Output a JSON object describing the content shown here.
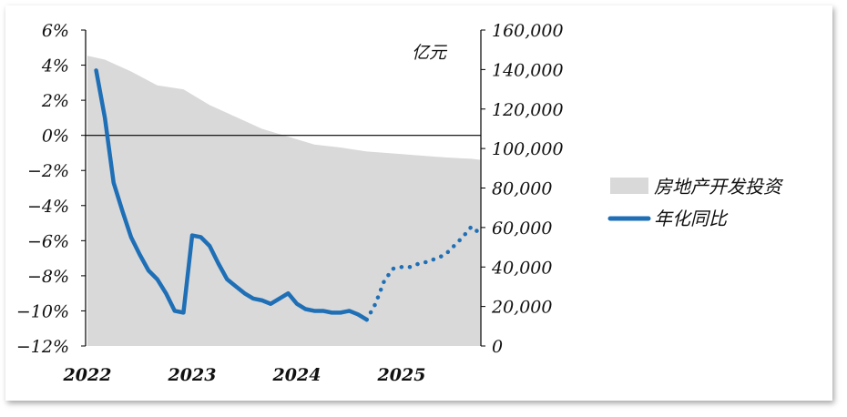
{
  "chart_data": {
    "type": "line",
    "left_axis": {
      "ticks": [
        "6%",
        "4%",
        "2%",
        "0%",
        "−2%",
        "−4%",
        "−6%",
        "−8%",
        "−10%",
        "−12%"
      ],
      "range": [
        -12,
        6
      ]
    },
    "right_axis": {
      "ticks": [
        "160,000",
        "140,000",
        "120,000",
        "100,000",
        "80,000",
        "60,000",
        "40,000",
        "20,000",
        "0"
      ],
      "range": [
        0,
        160000
      ],
      "unit": "亿元"
    },
    "x_ticks": [
      "2022",
      "2023",
      "2024",
      "2025"
    ],
    "x_axis": "months from Jan 2022 to Oct 2025",
    "series": [
      {
        "name": "房地产开发投资",
        "kind": "area",
        "axis": "right",
        "color": "#d9d9d9",
        "x": [
          "2022-01",
          "2022-03",
          "2022-06",
          "2022-09",
          "2022-12",
          "2023-03",
          "2023-06",
          "2023-09",
          "2023-12",
          "2024-03",
          "2024-06",
          "2024-09",
          "2024-12",
          "2025-03",
          "2025-06",
          "2025-09",
          "2025-10"
        ],
        "values": [
          147000,
          145000,
          139000,
          132000,
          130000,
          122000,
          116000,
          110000,
          106000,
          102000,
          100500,
          98500,
          97500,
          96500,
          95500,
          94800,
          94300
        ]
      },
      {
        "name": "年化同比",
        "kind": "line",
        "axis": "left",
        "color": "#1f6fb6",
        "actual": {
          "x": [
            "2022-02",
            "2022-03",
            "2022-04",
            "2022-05",
            "2022-06",
            "2022-07",
            "2022-08",
            "2022-09",
            "2022-10",
            "2022-11",
            "2022-12",
            "2023-01",
            "2023-02",
            "2023-03",
            "2023-04",
            "2023-05",
            "2023-06",
            "2023-07",
            "2023-08",
            "2023-09",
            "2023-10",
            "2023-11",
            "2023-12",
            "2024-01",
            "2024-02",
            "2024-03",
            "2024-04",
            "2024-05",
            "2024-06",
            "2024-07",
            "2024-08",
            "2024-09"
          ],
          "values": [
            3.7,
            1.0,
            -2.7,
            -4.3,
            -5.8,
            -6.8,
            -7.7,
            -8.2,
            -9.0,
            -10.0,
            -10.1,
            -5.7,
            -5.8,
            -6.3,
            -7.3,
            -8.2,
            -8.6,
            -9.0,
            -9.3,
            -9.4,
            -9.6,
            -9.3,
            -9.0,
            -9.6,
            -9.9,
            -10.0,
            -10.0,
            -10.1,
            -10.1,
            -10.0,
            -10.2,
            -10.5
          ]
        },
        "forecast": {
          "style": "dotted",
          "x": [
            "2024-09",
            "2024-10",
            "2024-11",
            "2024-12",
            "2025-01",
            "2025-02",
            "2025-03",
            "2025-04",
            "2025-05",
            "2025-06",
            "2025-07",
            "2025-08",
            "2025-09",
            "2025-10"
          ],
          "values": [
            -10.5,
            -9.6,
            -8.3,
            -7.6,
            -7.5,
            -7.5,
            -7.3,
            -7.2,
            -7.0,
            -6.8,
            -6.3,
            -5.8,
            -5.2,
            -5.6
          ]
        }
      }
    ],
    "legend_position": "right",
    "zero_line": true,
    "grid": false
  }
}
